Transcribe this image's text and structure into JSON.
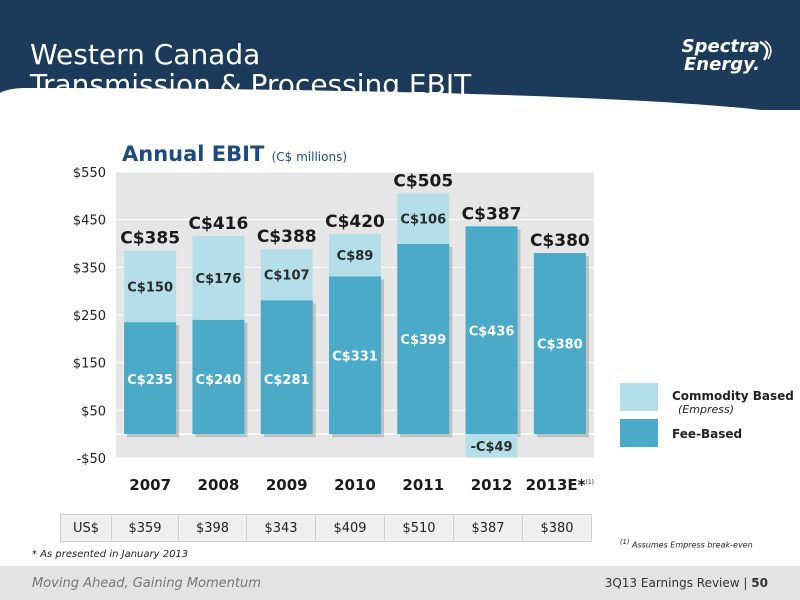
{
  "header": {
    "title_line1": "Western Canada",
    "title_line2": "Transmission & Processing EBIT",
    "logo_line1": "Spectra",
    "logo_line2": "Energy."
  },
  "chart_title": "Annual EBIT",
  "chart_unit": "(C$ millions)",
  "chart_data": {
    "type": "bar",
    "stacked": true,
    "title": "Annual EBIT",
    "subtitle": "(C$ millions)",
    "categories": [
      "2007",
      "2008",
      "2009",
      "2010",
      "2011",
      "2012",
      "2013E*"
    ],
    "category_superscript": [
      "",
      "",
      "",
      "",
      "",
      "",
      "(1)"
    ],
    "series": [
      {
        "name": "Fee-Based",
        "values": [
          235,
          240,
          281,
          331,
          399,
          436,
          380
        ],
        "labels": [
          "C$235",
          "C$240",
          "C$281",
          "C$331",
          "C$399",
          "C$436",
          "C$380"
        ],
        "color": "#4baac8"
      },
      {
        "name": "Commodity Based",
        "values": [
          150,
          176,
          107,
          89,
          106,
          -49,
          0
        ],
        "labels": [
          "C$150",
          "C$176",
          "C$107",
          "C$89",
          "C$106",
          "-C$49",
          ""
        ],
        "color": "#b4dfe9"
      }
    ],
    "totals": [
      "C$385",
      "C$416",
      "C$388",
      "C$420",
      "C$505",
      "C$387",
      "C$380"
    ],
    "y_ticks": [
      "$550",
      "$450",
      "$350",
      "$250",
      "$150",
      "$50",
      "-$50"
    ],
    "y_tick_values": [
      550,
      450,
      350,
      250,
      150,
      50,
      -50
    ],
    "ylim": [
      -50,
      550
    ],
    "grid": true,
    "legend_position": "right"
  },
  "legend": {
    "commodity_label": "Commodity Based",
    "commodity_sub": "(Empress)",
    "fee_label": "Fee-Based",
    "commodity_color": "#b4dfe9",
    "fee_color": "#4baac8"
  },
  "usd_row": {
    "label": "US$",
    "values": [
      "$359",
      "$398",
      "$343",
      "$409",
      "$510",
      "$387",
      "$380"
    ]
  },
  "footnotes": {
    "right_mark": "(1)",
    "right_text": "Assumes Empress break-even",
    "left": "* As presented in January 2013"
  },
  "footer": {
    "tagline": "Moving Ahead, Gaining Momentum",
    "doc": "3Q13 Earnings Review",
    "separator": "|",
    "page": "50"
  }
}
